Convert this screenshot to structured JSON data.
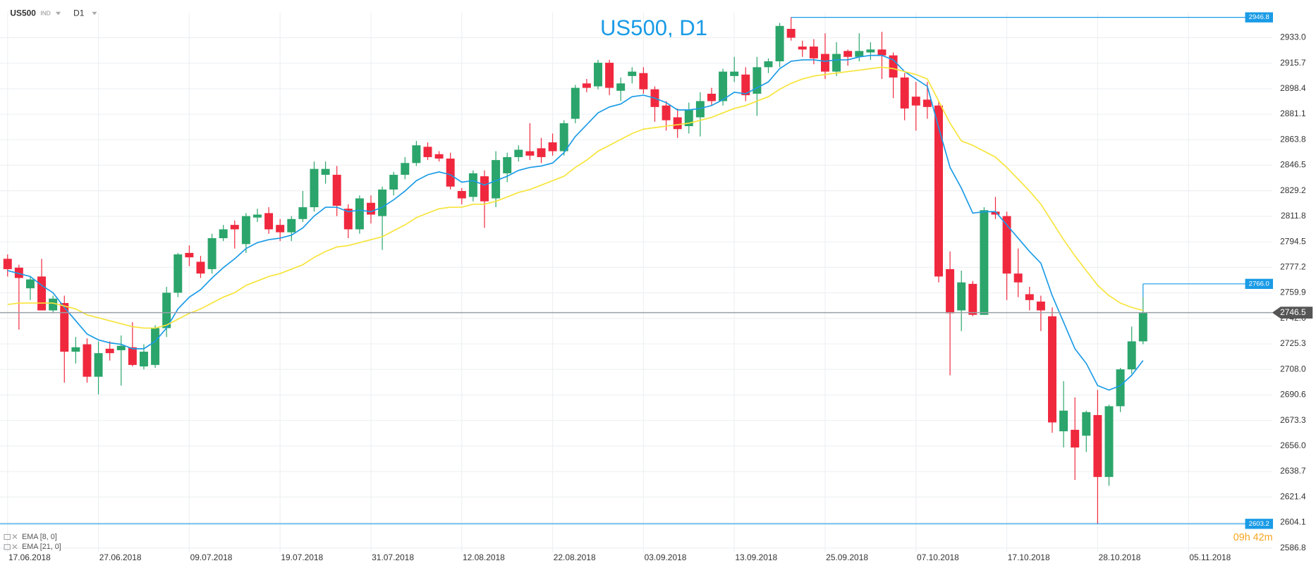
{
  "chart_data": {
    "type": "candlestick",
    "symbol": "US500",
    "instrument_type": "IND",
    "timeframe": "D1",
    "title": "US500, D1",
    "timer": "09h 42m",
    "up_color": "#2ba56b",
    "down_color": "#f0283e",
    "grid": true,
    "categories": [
      "17.06.2018",
      null,
      null,
      null,
      null,
      null,
      null,
      null,
      "27.06.2018",
      null,
      null,
      null,
      null,
      null,
      null,
      null,
      "09.07.2018",
      null,
      null,
      null,
      null,
      null,
      null,
      null,
      "19.07.2018",
      null,
      null,
      null,
      null,
      null,
      null,
      null,
      "31.07.2018",
      null,
      null,
      null,
      null,
      null,
      null,
      null,
      "12.08.2018",
      null,
      null,
      null,
      null,
      null,
      null,
      null,
      "22.08.2018",
      null,
      null,
      null,
      null,
      null,
      null,
      null,
      "03.09.2018",
      null,
      null,
      null,
      null,
      null,
      null,
      null,
      "13.09.2018",
      null,
      null,
      null,
      null,
      null,
      null,
      null,
      "25.09.2018",
      null,
      null,
      null,
      null,
      null,
      null,
      null,
      "07.10.2018",
      null,
      null,
      null,
      null,
      null,
      null,
      null,
      "17.10.2018",
      null,
      null,
      null,
      null,
      null,
      null,
      null,
      "28.10.2018",
      null,
      null,
      null,
      null,
      null,
      null,
      null,
      "05.11.2018"
    ],
    "open": [
      2783,
      2777,
      2763,
      2771,
      2748,
      2753,
      2720,
      2725,
      2703,
      2722,
      2721,
      2723,
      2710,
      2711,
      2736,
      2760,
      2787,
      2781,
      2776,
      2797,
      2806,
      2793,
      2811,
      2814,
      2806,
      2801,
      2810,
      2818,
      2840,
      2840,
      2817,
      2803,
      2821,
      2812,
      2830,
      2840,
      2848,
      2859,
      2854,
      2851,
      2829,
      2825,
      2839,
      2824,
      2841,
      2852,
      2856,
      2858,
      2862,
      2856,
      2878,
      2902,
      2900,
      2916,
      2897,
      2907,
      2909,
      2898,
      2887,
      2879,
      2873,
      2879,
      2895,
      2890,
      2907,
      2908,
      2895,
      2913,
      2917,
      2939,
      2927,
      2927,
      2922,
      2910,
      2924,
      2920,
      2923,
      2925,
      2921,
      2906,
      2893,
      2891,
      2887,
      2776,
      2748,
      2766,
      2745,
      2815,
      2812,
      2773,
      2759,
      2754,
      2744,
      2666,
      2667,
      2663,
      2677,
      2635,
      2683,
      2708,
      2727,
      null,
      null,
      null,
      null
    ],
    "high": [
      2786,
      2779,
      2771,
      2783,
      2758,
      2758,
      2730,
      2729,
      2727,
      2727,
      2731,
      2740,
      2725,
      2738,
      2764,
      2787,
      2792,
      2785,
      2800,
      2806,
      2809,
      2814,
      2817,
      2818,
      2810,
      2812,
      2829,
      2849,
      2849,
      2846,
      2820,
      2826,
      2826,
      2832,
      2842,
      2852,
      2863,
      2862,
      2856,
      2855,
      2831,
      2843,
      2843,
      2856,
      2855,
      2860,
      2875,
      2865,
      2868,
      2877,
      2901,
      2905,
      2918,
      2918,
      2906,
      2913,
      2913,
      2900,
      2890,
      2885,
      2889,
      2896,
      2899,
      2912,
      2920,
      2913,
      2920,
      2919,
      2943,
      2946.8,
      2931,
      2932,
      2936,
      2930,
      2925,
      2936,
      2930,
      2937,
      2923,
      2909,
      2903,
      2903,
      2890,
      2788,
      2775,
      2768,
      2818,
      2825,
      2815,
      2790,
      2764,
      2758,
      2750,
      2700,
      2689,
      2680,
      2694,
      2684,
      2709,
      2737,
      2757,
      null,
      null,
      null,
      null
    ],
    "low": [
      2771,
      2735,
      2755,
      2748,
      2746,
      2699,
      2712,
      2699,
      2691,
      2714,
      2697,
      2710,
      2708,
      2709,
      2730,
      2757,
      2778,
      2770,
      2773,
      2795,
      2790,
      2787,
      2808,
      2800,
      2795,
      2795,
      2808,
      2815,
      2834,
      2812,
      2797,
      2800,
      2807,
      2789,
      2826,
      2837,
      2846,
      2850,
      2849,
      2830,
      2820,
      2822,
      2804,
      2818,
      2835,
      2849,
      2850,
      2848,
      2853,
      2853,
      2875,
      2896,
      2898,
      2894,
      2890,
      2902,
      2895,
      2876,
      2870,
      2865,
      2868,
      2866,
      2887,
      2887,
      2903,
      2890,
      2880,
      2909,
      2913,
      2931,
      2920,
      2915,
      2905,
      2907,
      2914,
      2917,
      2918,
      2905,
      2892,
      2877,
      2870,
      2878,
      2767,
      2704,
      2734,
      2744,
      2745,
      2810,
      2755,
      2757,
      2748,
      2734,
      2665,
      2655,
      2633,
      2652,
      2603.2,
      2629,
      2679,
      2705,
      2725,
      null,
      null,
      null,
      null
    ],
    "close": [
      2776,
      2770,
      2769,
      2748,
      2756,
      2720,
      2723,
      2703,
      2719,
      2719,
      2724,
      2711,
      2720,
      2736,
      2760,
      2786,
      2784,
      2773,
      2797,
      2803,
      2803,
      2812,
      2813,
      2803,
      2801,
      2810,
      2818,
      2844,
      2844,
      2819,
      2803,
      2824,
      2813,
      2830,
      2840,
      2848,
      2860,
      2852,
      2851,
      2832,
      2824,
      2841,
      2822,
      2850,
      2852,
      2857,
      2853,
      2852,
      2856,
      2875,
      2899,
      2899,
      2916,
      2899,
      2902,
      2910,
      2898,
      2886,
      2877,
      2871,
      2884,
      2890,
      2890,
      2910,
      2910,
      2894,
      2913,
      2917,
      2941,
      2933,
      2925,
      2919,
      2910,
      2922,
      2920,
      2924,
      2925,
      2921,
      2906,
      2885,
      2887,
      2886,
      2771,
      2746,
      2767,
      2745,
      2816,
      2813,
      2773,
      2767,
      2755,
      2748,
      2672,
      2680,
      2655,
      2679,
      2635,
      2683,
      2708,
      2727,
      2746.5,
      null,
      null,
      null,
      null
    ],
    "series": [
      {
        "name": "EMA [8, 0]",
        "color": "#1a9be6",
        "values": [
          2775,
          2773,
          2771,
          2765,
          2760,
          2750,
          2741,
          2732,
          2728,
          2726,
          2725,
          2722,
          2722,
          2727,
          2736,
          2749,
          2757,
          2762,
          2770,
          2777,
          2783,
          2790,
          2794,
          2796,
          2797,
          2799,
          2804,
          2812,
          2818,
          2818,
          2815,
          2816,
          2815,
          2818,
          2823,
          2829,
          2836,
          2840,
          2842,
          2840,
          2835,
          2836,
          2833,
          2836,
          2839,
          2843,
          2845,
          2846,
          2848,
          2855,
          2866,
          2874,
          2882,
          2886,
          2888,
          2893,
          2894,
          2892,
          2889,
          2884,
          2884,
          2885,
          2887,
          2891,
          2896,
          2895,
          2899,
          2903,
          2912,
          2917,
          2918,
          2918,
          2917,
          2918,
          2918,
          2920,
          2921,
          2921,
          2918,
          2910,
          2905,
          2900,
          2872,
          2845,
          2831,
          2814,
          2815,
          2815,
          2806,
          2797,
          2788,
          2780,
          2758,
          2740,
          2722,
          2712,
          2697,
          2694,
          2697,
          2704,
          2714,
          null,
          null,
          null,
          null
        ]
      },
      {
        "name": "EMA [21, 0]",
        "color": "#f7e43a",
        "values": [
          2752,
          2753,
          2753,
          2753,
          2753,
          2751,
          2749,
          2745,
          2743,
          2741,
          2739,
          2737,
          2736,
          2736,
          2738,
          2742,
          2746,
          2749,
          2753,
          2757,
          2760,
          2765,
          2768,
          2771,
          2773,
          2776,
          2779,
          2784,
          2788,
          2791,
          2792,
          2794,
          2796,
          2798,
          2802,
          2806,
          2811,
          2814,
          2817,
          2818,
          2818,
          2820,
          2820,
          2822,
          2825,
          2828,
          2830,
          2833,
          2836,
          2839,
          2845,
          2850,
          2856,
          2860,
          2864,
          2868,
          2871,
          2872,
          2873,
          2874,
          2875,
          2877,
          2879,
          2882,
          2885,
          2887,
          2890,
          2893,
          2898,
          2902,
          2905,
          2907,
          2908,
          2909,
          2910,
          2911,
          2912,
          2913,
          2912,
          2910,
          2908,
          2905,
          2890,
          2875,
          2863,
          2860,
          2856,
          2852,
          2845,
          2837,
          2829,
          2820,
          2808,
          2796,
          2785,
          2775,
          2765,
          2758,
          2753,
          2750,
          2748,
          null,
          null,
          null,
          null
        ]
      }
    ],
    "ylim": [
      2584,
      2950
    ],
    "yticks": [
      2586.8,
      2604.1,
      2621.4,
      2638.7,
      {
        "value": 2656,
        "label": "2656.0"
      },
      2673.3,
      2690.6,
      {
        "value": 2708,
        "label": "2708.0"
      },
      2725.3,
      2742.6,
      2759.9,
      2777.2,
      2794.5,
      2811.8,
      2829.2,
      2846.5,
      2863.8,
      2881.1,
      2898.4,
      2915.7,
      {
        "value": 2933,
        "label": "2933.0"
      }
    ],
    "price_lines": [
      {
        "value": 2946.8,
        "label": "2946.8"
      },
      {
        "value": 2766,
        "label": "2766.0"
      },
      {
        "value": 2746.5,
        "label": "2746.5"
      },
      {
        "value": 2603.2,
        "label": "2603.2"
      }
    ]
  }
}
